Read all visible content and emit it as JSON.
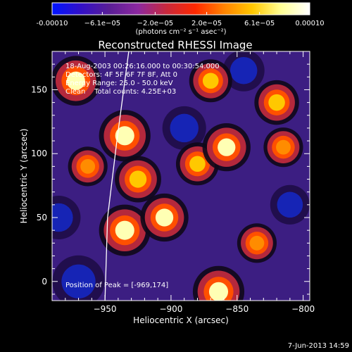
{
  "chart_data": {
    "type": "heatmap",
    "title": "Reconstructed RHESSI Image",
    "xlabel": "Heliocentric X (arcsec)",
    "ylabel": "Heliocentric Y (arcsec)",
    "xlim": [
      -990,
      -795
    ],
    "ylim": [
      -15,
      180
    ],
    "x_ticks": [
      -950,
      -900,
      -850,
      -800
    ],
    "y_ticks": [
      0,
      50,
      100,
      150
    ],
    "colorbar": {
      "min": -0.0001,
      "max": 0.0001,
      "tick_values": [
        -0.0001,
        -6.1e-05,
        -2e-05,
        2e-05,
        6.1e-05,
        0.0001
      ],
      "tick_labels": [
        "-0.00010",
        "−6.1e−05",
        "−2.0e−05",
        "2.0e−05",
        "6.1e−05",
        "0.00010"
      ],
      "units": "(photons cm⁻² s⁻¹ asec⁻²)",
      "colors": [
        "#0014ff",
        "#3210c8",
        "#5a1e96",
        "#8c28a0",
        "#c8283c",
        "#ff2800",
        "#ff8200",
        "#ffc800",
        "#ffff96",
        "#ffffff"
      ]
    },
    "annotations": [
      "18-Aug-2003 00:26:16.000 to 00:30:54.000",
      "Detectors: 4F 5F 6F 7F 8F, Att 0",
      "Energy Range: 25.0 - 50.0 keV",
      "Clean    Total counts: 4.25E+03"
    ],
    "peak_text": "Position of Peak = [-969,174]",
    "limb_curve": [
      [
        -950,
        -15
      ],
      [
        -948,
        50
      ],
      [
        -941,
        110
      ],
      [
        -932,
        180
      ]
    ],
    "bright_sources": [
      {
        "x": -972,
        "y": 157,
        "level": 0.9
      },
      {
        "x": -935,
        "y": 114,
        "level": 0.95
      },
      {
        "x": -925,
        "y": 80,
        "level": 0.8
      },
      {
        "x": -935,
        "y": 40,
        "level": 0.95
      },
      {
        "x": -905,
        "y": 50,
        "level": 0.85
      },
      {
        "x": -880,
        "y": 92,
        "level": 0.7
      },
      {
        "x": -858,
        "y": 105,
        "level": 0.85
      },
      {
        "x": -870,
        "y": 157,
        "level": 0.7
      },
      {
        "x": -820,
        "y": 140,
        "level": 0.75
      },
      {
        "x": -815,
        "y": 105,
        "level": 0.6
      },
      {
        "x": -864,
        "y": -8,
        "level": 0.95
      },
      {
        "x": -835,
        "y": 30,
        "level": 0.6
      },
      {
        "x": -963,
        "y": 90,
        "level": 0.6
      }
    ],
    "dark_regions": [
      {
        "x": -970,
        "y": 0,
        "level": 0.7
      },
      {
        "x": -985,
        "y": 50,
        "level": 0.5
      },
      {
        "x": -890,
        "y": 120,
        "level": 0.5
      },
      {
        "x": -810,
        "y": 60,
        "level": 0.4
      },
      {
        "x": -845,
        "y": 165,
        "level": 0.45
      }
    ]
  },
  "footer": {
    "timestamp": "7-Jun-2013 14:59"
  }
}
